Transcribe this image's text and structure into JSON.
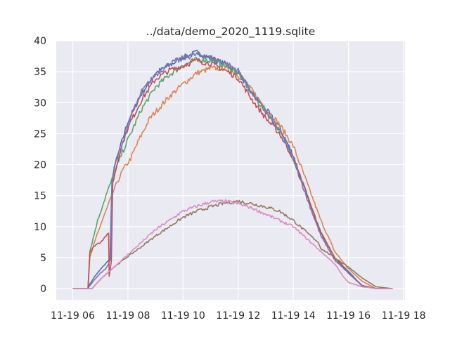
{
  "chart_data": {
    "type": "line",
    "title": "../data/demo_2020_1119.sqlite",
    "xlabel": "",
    "ylabel": "",
    "xlim": [
      5.4,
      18.05
    ],
    "ylim": [
      -1.8,
      40
    ],
    "grid": true,
    "legend": "none",
    "x_ticks": [
      {
        "value": 6,
        "label": "11-19 06"
      },
      {
        "value": 8,
        "label": "11-19 08"
      },
      {
        "value": 10,
        "label": "11-19 10"
      },
      {
        "value": 12,
        "label": "11-19 12"
      },
      {
        "value": 14,
        "label": "11-19 14"
      },
      {
        "value": 16,
        "label": "11-19 16"
      },
      {
        "value": 18,
        "label": "11-19 18"
      }
    ],
    "y_ticks": [
      {
        "value": 0,
        "label": "0"
      },
      {
        "value": 5,
        "label": "5"
      },
      {
        "value": 10,
        "label": "10"
      },
      {
        "value": 15,
        "label": "15"
      },
      {
        "value": 20,
        "label": "20"
      },
      {
        "value": 25,
        "label": "25"
      },
      {
        "value": 30,
        "label": "30"
      },
      {
        "value": 35,
        "label": "35"
      },
      {
        "value": 40,
        "label": "40"
      }
    ],
    "series": [
      {
        "color": "#4c72b0",
        "points": [
          [
            6.0,
            0
          ],
          [
            6.55,
            0
          ],
          [
            6.6,
            0.6
          ],
          [
            6.8,
            2
          ],
          [
            7.1,
            3.6
          ],
          [
            7.35,
            4.8
          ],
          [
            7.42,
            17
          ],
          [
            7.5,
            19.5
          ],
          [
            7.7,
            22.5
          ],
          [
            8.0,
            27
          ],
          [
            8.5,
            31.5
          ],
          [
            9.0,
            34.8
          ],
          [
            9.5,
            36
          ],
          [
            10.0,
            37.3
          ],
          [
            10.5,
            38.1
          ],
          [
            11.0,
            37.2
          ],
          [
            11.5,
            36.3
          ],
          [
            12.0,
            35
          ],
          [
            12.5,
            31.5
          ],
          [
            13.0,
            29
          ],
          [
            13.5,
            26
          ],
          [
            14.0,
            21.5
          ],
          [
            14.5,
            15
          ],
          [
            15.0,
            9
          ],
          [
            15.5,
            5
          ],
          [
            16.0,
            2.8
          ],
          [
            16.5,
            0.4
          ],
          [
            17.0,
            0
          ],
          [
            17.6,
            0
          ]
        ]
      },
      {
        "color": "#dd8452",
        "points": [
          [
            6.0,
            0
          ],
          [
            6.55,
            0
          ],
          [
            6.62,
            5
          ],
          [
            6.9,
            9
          ],
          [
            7.2,
            12.5
          ],
          [
            7.5,
            16
          ],
          [
            7.8,
            19
          ],
          [
            8.1,
            21
          ],
          [
            8.4,
            24
          ],
          [
            8.8,
            27.5
          ],
          [
            9.2,
            29.5
          ],
          [
            9.5,
            31
          ],
          [
            10.0,
            33
          ],
          [
            10.5,
            34.8
          ],
          [
            11.0,
            35.5
          ],
          [
            11.5,
            35.6
          ],
          [
            12.0,
            34.5
          ],
          [
            12.5,
            32
          ],
          [
            13.0,
            29
          ],
          [
            13.5,
            26.5
          ],
          [
            14.0,
            23
          ],
          [
            14.5,
            17
          ],
          [
            15.0,
            11
          ],
          [
            15.5,
            6
          ],
          [
            16.0,
            3.2
          ],
          [
            16.5,
            1.2
          ],
          [
            17.0,
            0
          ],
          [
            17.6,
            0
          ]
        ]
      },
      {
        "color": "#55a868",
        "points": [
          [
            6.0,
            0
          ],
          [
            6.55,
            0
          ],
          [
            6.62,
            6
          ],
          [
            6.9,
            11
          ],
          [
            7.2,
            15
          ],
          [
            7.5,
            18.5
          ],
          [
            7.8,
            22
          ],
          [
            8.1,
            25
          ],
          [
            8.5,
            29
          ],
          [
            9.0,
            32.5
          ],
          [
            9.5,
            34.5
          ],
          [
            10.0,
            36
          ],
          [
            10.5,
            37
          ],
          [
            11.0,
            36.8
          ],
          [
            11.5,
            36
          ],
          [
            12.0,
            34.8
          ],
          [
            12.5,
            31.5
          ],
          [
            13.0,
            28.5
          ],
          [
            13.5,
            25.5
          ],
          [
            14.0,
            21
          ],
          [
            14.5,
            15
          ],
          [
            15.0,
            9
          ],
          [
            15.5,
            5
          ],
          [
            16.0,
            2.5
          ],
          [
            16.5,
            0.5
          ],
          [
            17.0,
            0
          ],
          [
            17.6,
            0
          ]
        ]
      },
      {
        "color": "#c44e52",
        "points": [
          [
            6.0,
            0
          ],
          [
            6.55,
            0
          ],
          [
            6.62,
            5.8
          ],
          [
            6.8,
            7
          ],
          [
            7.0,
            7.5
          ],
          [
            7.2,
            8.5
          ],
          [
            7.3,
            8.8
          ],
          [
            7.32,
            2
          ],
          [
            7.4,
            4.5
          ],
          [
            7.45,
            17
          ],
          [
            7.7,
            22
          ],
          [
            8.0,
            26
          ],
          [
            8.5,
            30.5
          ],
          [
            9.0,
            33.8
          ],
          [
            9.5,
            35.2
          ],
          [
            10.0,
            36
          ],
          [
            10.5,
            36.8
          ],
          [
            11.0,
            36.3
          ],
          [
            11.5,
            35.3
          ],
          [
            12.0,
            34
          ],
          [
            12.5,
            30.5
          ],
          [
            13.0,
            27.5
          ],
          [
            13.5,
            25
          ],
          [
            14.0,
            21
          ],
          [
            14.5,
            15
          ],
          [
            15.0,
            9
          ],
          [
            15.5,
            5
          ],
          [
            16.0,
            2.5
          ],
          [
            16.5,
            0.5
          ],
          [
            17.0,
            0
          ],
          [
            17.6,
            0
          ]
        ]
      },
      {
        "color": "#8172b3",
        "points": [
          [
            6.0,
            0
          ],
          [
            6.55,
            0
          ],
          [
            6.62,
            0.5
          ],
          [
            6.8,
            1.5
          ],
          [
            7.0,
            2.5
          ],
          [
            7.2,
            3.2
          ],
          [
            7.38,
            4.8
          ],
          [
            7.42,
            16
          ],
          [
            7.5,
            19.5
          ],
          [
            7.8,
            23.5
          ],
          [
            8.1,
            27.5
          ],
          [
            8.5,
            31.8
          ],
          [
            9.0,
            34.5
          ],
          [
            9.5,
            36.3
          ],
          [
            10.0,
            37.2
          ],
          [
            10.5,
            37.8
          ],
          [
            11.0,
            37.3
          ],
          [
            11.5,
            36.5
          ],
          [
            12.0,
            35.2
          ],
          [
            12.5,
            31.5
          ],
          [
            13.0,
            28.5
          ],
          [
            13.5,
            25.5
          ],
          [
            14.0,
            21
          ],
          [
            14.5,
            14.5
          ],
          [
            15.0,
            8.5
          ],
          [
            15.5,
            4.6
          ],
          [
            16.0,
            2.5
          ],
          [
            16.5,
            0.4
          ],
          [
            17.0,
            0
          ],
          [
            17.6,
            0
          ]
        ]
      },
      {
        "color": "#937860",
        "points": [
          [
            6.0,
            0
          ],
          [
            6.7,
            0
          ],
          [
            7.0,
            1.5
          ],
          [
            7.5,
            3.5
          ],
          [
            8.0,
            5.2
          ],
          [
            8.5,
            6.8
          ],
          [
            9.0,
            8.5
          ],
          [
            9.5,
            10
          ],
          [
            10.0,
            11.5
          ],
          [
            10.5,
            12.5
          ],
          [
            11.0,
            13.2
          ],
          [
            11.5,
            13.8
          ],
          [
            12.0,
            14.1
          ],
          [
            12.5,
            13.7
          ],
          [
            13.0,
            13.2
          ],
          [
            13.5,
            12.5
          ],
          [
            14.0,
            11
          ],
          [
            14.5,
            9
          ],
          [
            14.9,
            7.5
          ],
          [
            15.0,
            6.5
          ],
          [
            15.5,
            5
          ],
          [
            16.0,
            3.5
          ],
          [
            16.5,
            1.7
          ],
          [
            17.0,
            0.3
          ],
          [
            17.6,
            0
          ]
        ]
      },
      {
        "color": "#da8bc3",
        "points": [
          [
            6.0,
            0
          ],
          [
            6.7,
            0
          ],
          [
            7.0,
            1.5
          ],
          [
            7.5,
            3.5
          ],
          [
            8.0,
            5.5
          ],
          [
            8.5,
            7.5
          ],
          [
            9.0,
            9.5
          ],
          [
            9.5,
            11
          ],
          [
            10.0,
            12.5
          ],
          [
            10.5,
            13.3
          ],
          [
            11.0,
            14
          ],
          [
            11.5,
            14.1
          ],
          [
            12.0,
            13.7
          ],
          [
            12.5,
            13
          ],
          [
            13.0,
            12
          ],
          [
            13.5,
            11
          ],
          [
            14.0,
            10
          ],
          [
            14.5,
            8
          ],
          [
            15.0,
            6
          ],
          [
            15.5,
            4
          ],
          [
            15.8,
            2
          ],
          [
            16.0,
            1
          ],
          [
            16.5,
            0.3
          ],
          [
            17.0,
            0
          ],
          [
            17.6,
            0
          ]
        ]
      }
    ]
  }
}
